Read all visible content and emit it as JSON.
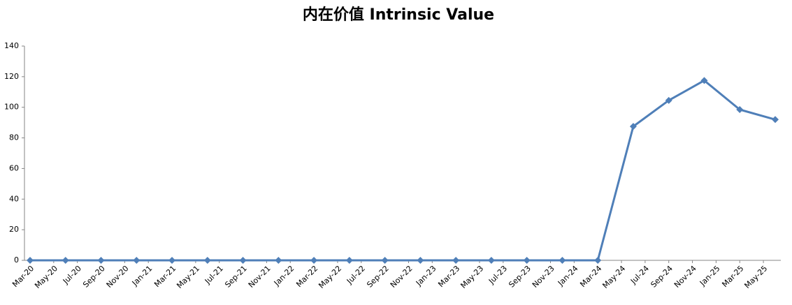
{
  "chart_data": {
    "type": "line",
    "title": "内在价值 Intrinsic Value",
    "x": [
      "2020-03",
      "2020-06",
      "2020-09",
      "2020-12",
      "2021-03",
      "2021-06",
      "2021-09",
      "2021-12",
      "2022-03",
      "2022-06",
      "2022-09",
      "2022-12",
      "2023-03",
      "2023-06",
      "2023-09",
      "2023-12",
      "2024-03",
      "2024-06",
      "2024-09",
      "2024-12",
      "2025-03",
      "2025-06"
    ],
    "series": [
      {
        "name": "Intrinsic Value",
        "color": "#4f7fb8",
        "values": [
          0,
          0,
          0,
          0,
          0,
          0,
          0,
          0,
          0,
          0,
          0,
          0,
          0,
          0,
          0,
          0,
          0,
          87.5,
          104.5,
          117.5,
          98.5,
          92
        ]
      }
    ],
    "xlim": [
      "2020-03",
      "2025-06"
    ],
    "xticks": [
      {
        "value": "2020-03",
        "label": "Mar-20"
      },
      {
        "value": "2020-05",
        "label": "May-20"
      },
      {
        "value": "2020-07",
        "label": "Jul-20"
      },
      {
        "value": "2020-09",
        "label": "Sep-20"
      },
      {
        "value": "2020-11",
        "label": "Nov-20"
      },
      {
        "value": "2021-01",
        "label": "Jan-21"
      },
      {
        "value": "2021-03",
        "label": "Mar-21"
      },
      {
        "value": "2021-05",
        "label": "May-21"
      },
      {
        "value": "2021-07",
        "label": "Jul-21"
      },
      {
        "value": "2021-09",
        "label": "Sep-21"
      },
      {
        "value": "2021-11",
        "label": "Nov-21"
      },
      {
        "value": "2022-01",
        "label": "Jan-22"
      },
      {
        "value": "2022-03",
        "label": "Mar-22"
      },
      {
        "value": "2022-05",
        "label": "May-22"
      },
      {
        "value": "2022-07",
        "label": "Jul-22"
      },
      {
        "value": "2022-09",
        "label": "Sep-22"
      },
      {
        "value": "2022-11",
        "label": "Nov-22"
      },
      {
        "value": "2023-01",
        "label": "Jan-23"
      },
      {
        "value": "2023-03",
        "label": "Mar-23"
      },
      {
        "value": "2023-05",
        "label": "May-23"
      },
      {
        "value": "2023-07",
        "label": "Jul-23"
      },
      {
        "value": "2023-09",
        "label": "Sep-23"
      },
      {
        "value": "2023-11",
        "label": "Nov-23"
      },
      {
        "value": "2024-01",
        "label": "Jan-24"
      },
      {
        "value": "2024-03",
        "label": "Mar-24"
      },
      {
        "value": "2024-05",
        "label": "May-24"
      },
      {
        "value": "2024-07",
        "label": "Jul-24"
      },
      {
        "value": "2024-09",
        "label": "Sep-24"
      },
      {
        "value": "2024-11",
        "label": "Nov-24"
      },
      {
        "value": "2025-01",
        "label": "Jan-25"
      },
      {
        "value": "2025-03",
        "label": "Mar-25"
      },
      {
        "value": "2025-05",
        "label": "May-25"
      }
    ],
    "ylim": [
      0,
      140
    ],
    "yticks": [
      0,
      20,
      40,
      60,
      80,
      100,
      120,
      140
    ],
    "grid": false
  }
}
